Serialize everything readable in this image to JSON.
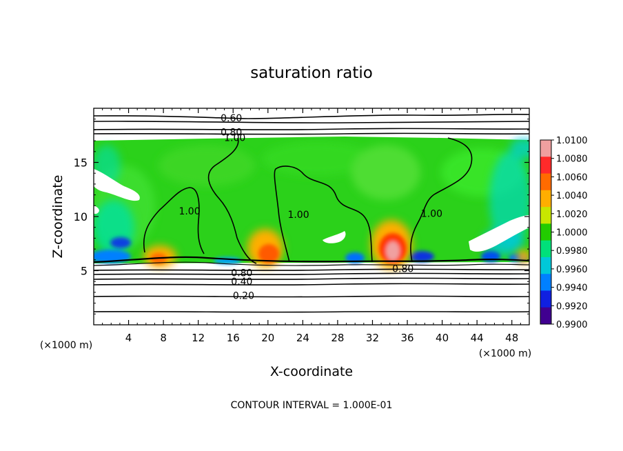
{
  "chart_data": {
    "type": "heatmap",
    "title": "saturation ratio",
    "xlabel": "X-coordinate",
    "ylabel": "Z-coordinate",
    "x_unit": "(×1000 m)",
    "xlim": [
      0,
      50
    ],
    "ylim": [
      0,
      20
    ],
    "x_ticks": [
      4,
      8,
      12,
      16,
      20,
      24,
      28,
      32,
      36,
      40,
      44,
      48
    ],
    "y_ticks": [
      5,
      10,
      15
    ],
    "colorbar_labels": [
      "1.0100",
      "1.0080",
      "1.0060",
      "1.0040",
      "1.0020",
      "1.0000",
      "0.9980",
      "0.9960",
      "0.9940",
      "0.9920",
      "0.9900"
    ],
    "colorbar_colors": [
      "#f0a0a0",
      "#ff2a2a",
      "#ff6b00",
      "#ffae00",
      "#c8e600",
      "#22cc00",
      "#00e07a",
      "#00c8d8",
      "#0080ff",
      "#1020e0",
      "#400090"
    ],
    "contour_labels": [
      {
        "text": "0.60",
        "x": 15.8,
        "z": 19.1
      },
      {
        "text": "0.80",
        "x": 15.8,
        "z": 17.8
      },
      {
        "text": "1.00",
        "x": 16.2,
        "z": 17.3
      },
      {
        "text": "1.00",
        "x": 11.0,
        "z": 10.5
      },
      {
        "text": "1.00",
        "x": 23.5,
        "z": 10.2
      },
      {
        "text": "1.00",
        "x": 38.8,
        "z": 10.3
      },
      {
        "text": "0.80",
        "x": 17.0,
        "z": 4.8
      },
      {
        "text": "0.40",
        "x": 17.0,
        "z": 4.0
      },
      {
        "text": "0.20",
        "x": 17.2,
        "z": 2.7
      },
      {
        "text": "0.80",
        "x": 35.5,
        "z": 5.2
      }
    ],
    "footer": "CONTOUR INTERVAL = 1.000E-01"
  }
}
